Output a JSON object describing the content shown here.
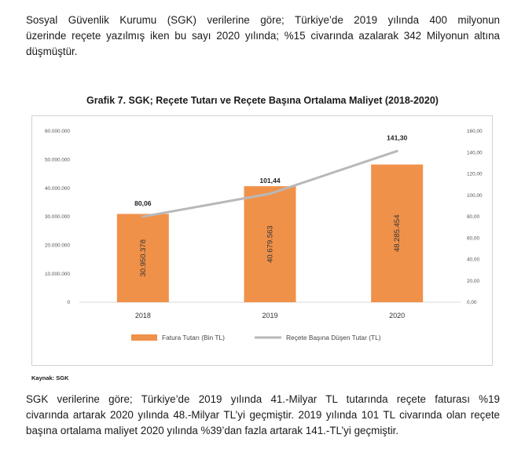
{
  "paragraph_top": [
    "Sosyal Güvenlik Kurumu (SGK) verilerine göre; Türkiye’de 2019 yılında 400 milyonun",
    "üzerinde reçete yazılmış iken bu sayı 2020 yılında; %15 civarında azalarak 342 Milyonun altına",
    "düşmüştür."
  ],
  "source": "Kaynak: SGK",
  "paragraph_bottom": [
    "SGK verilerine göre; Türkiye’de 2019 yılında 41.-Milyar TL tutarında reçete faturası %19",
    "civarında artarak 2020 yılında 48.-Milyar TL’yi geçmiştir. 2019 yılında 101 TL civarında olan reçete",
    "başına ortalama maliyet 2020 yılında %39’dan fazla artarak 141.-TL’yi geçmiştir."
  ],
  "colors": {
    "bar": "#f0914a",
    "line": "#b8b8b8"
  },
  "chart_data": {
    "type": "bar",
    "title": "Grafik 7. SGK; Reçete Tutarı ve Reçete Başına Ortalama Maliyet (2018-2020)",
    "categories": [
      "2018",
      "2019",
      "2020"
    ],
    "series": [
      {
        "name": "Fatura Tutarı (Bin TL)",
        "type": "bar",
        "axis": "left",
        "values": [
          30950378,
          40679563,
          48285454
        ],
        "labels": [
          "30.950.378",
          "40.679.563",
          "48.285.454"
        ]
      },
      {
        "name": "Reçete Başına Düşen Tutar (TL)",
        "type": "line",
        "axis": "right",
        "values": [
          80.06,
          101.44,
          141.3
        ],
        "labels": [
          "80,06",
          "101,44",
          "141,30"
        ]
      }
    ],
    "ylim_left": [
      0,
      60000000
    ],
    "ylim_right": [
      0,
      160
    ],
    "y_ticks_left": [
      "0",
      "10.000.000",
      "20.000.000",
      "30.000.000",
      "40.000.000",
      "50.000.000",
      "60.000.000"
    ],
    "y_ticks_right": [
      "0,00",
      "20,00",
      "40,00",
      "60,00",
      "80,00",
      "100,00",
      "120,00",
      "140,00",
      "160,00"
    ],
    "grid": false,
    "legend_position": "bottom"
  }
}
